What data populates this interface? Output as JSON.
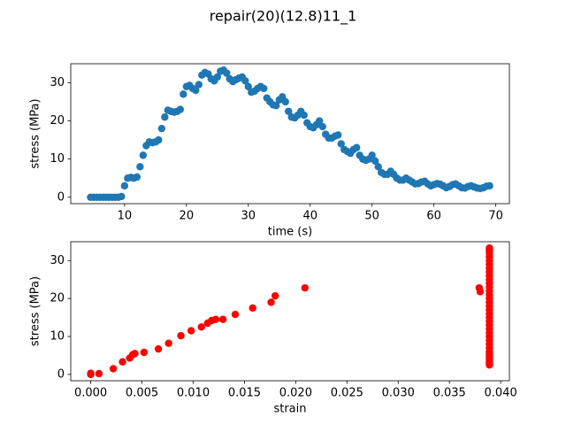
{
  "title": "repair(20)(12.8)11_1",
  "chart_data": [
    {
      "type": "scatter",
      "x_label": "time (s)",
      "y_label": "stress (MPa)",
      "color": "#1f77b4",
      "x": [
        4.5,
        5,
        5.5,
        6,
        6.5,
        7,
        7.5,
        8,
        8.5,
        9,
        9.5,
        10,
        10.5,
        11,
        11.5,
        12,
        12.5,
        13,
        13.5,
        14,
        14.5,
        15,
        15.5,
        16,
        16.5,
        17,
        17.5,
        18,
        18.5,
        19,
        19.5,
        20,
        20.5,
        21,
        21.5,
        22,
        22.5,
        23,
        23.5,
        24,
        24.5,
        25,
        25.5,
        26,
        26.5,
        27,
        27.5,
        28,
        28.5,
        29,
        29.5,
        30,
        30.5,
        31,
        31.5,
        32,
        32.5,
        33,
        33.5,
        34,
        34.5,
        35,
        35.5,
        36,
        36.5,
        37,
        37.5,
        38,
        38.5,
        39,
        39.5,
        40,
        40.5,
        41,
        41.5,
        42,
        42.5,
        43,
        43.5,
        44,
        44.5,
        45,
        45.5,
        46,
        46.5,
        47,
        47.5,
        48,
        48.5,
        49,
        49.5,
        50,
        50.5,
        51,
        51.5,
        52,
        52.5,
        53,
        53.5,
        54,
        54.5,
        55,
        55.5,
        56,
        56.5,
        57,
        57.5,
        58,
        58.5,
        59,
        59.5,
        60,
        60.5,
        61,
        61.5,
        62,
        62.5,
        63,
        63.5,
        64,
        64.5,
        65,
        65.5,
        66,
        66.5,
        67,
        67.5,
        68,
        68.5,
        69
      ],
      "values": [
        0,
        0,
        0,
        0,
        0,
        0,
        0,
        0,
        0,
        0,
        0.2,
        3,
        5,
        5.2,
        5,
        5.3,
        8,
        11,
        13.5,
        14.5,
        14.3,
        14.5,
        15,
        18,
        21,
        22.8,
        22.5,
        22.3,
        22.5,
        23,
        27,
        29,
        29.3,
        28.5,
        28,
        29.5,
        32,
        32.7,
        32.3,
        31,
        30.5,
        31.5,
        33,
        33.3,
        32.5,
        31,
        30.3,
        30.8,
        31.2,
        31.5,
        30.5,
        29,
        27.5,
        27.8,
        28.5,
        29,
        28.5,
        26,
        25,
        24.2,
        24,
        25.5,
        26.3,
        25,
        22.5,
        21,
        20.8,
        21.5,
        22.5,
        21.5,
        19.5,
        18.5,
        18.2,
        19,
        20,
        18.5,
        16.5,
        15.5,
        15.5,
        16,
        16.3,
        14,
        12.5,
        12,
        11.5,
        12.5,
        13,
        11,
        10,
        9.7,
        10,
        11,
        9.5,
        8,
        6.5,
        6,
        6,
        6.8,
        6,
        5,
        4.5,
        4.5,
        5,
        4.5,
        4,
        3.5,
        3.6,
        4,
        4.2,
        3.5,
        3,
        3.3,
        3.6,
        3.4,
        3,
        2.5,
        2.8,
        3.3,
        3.5,
        3,
        2.5,
        2.4,
        2.8,
        3,
        2.7,
        2.4,
        2.3,
        2.5,
        2.9,
        3
      ],
      "xlim": [
        1.3,
        72.2
      ],
      "xticks": [
        10,
        20,
        30,
        40,
        50,
        60,
        70
      ],
      "ylim": [
        -1.67,
        34.97
      ],
      "yticks": [
        0,
        10,
        20,
        30
      ]
    },
    {
      "type": "scatter",
      "x_label": "strain",
      "y_label": "stress (MPa)",
      "color": "red",
      "x": [
        0,
        0,
        0.0008,
        0.0022,
        0.0031,
        0.0038,
        0.0041,
        0.0043,
        0.0052,
        0.0066,
        0.0076,
        0.0088,
        0.0098,
        0.0108,
        0.0114,
        0.0118,
        0.0122,
        0.0129,
        0.0141,
        0.0158,
        0.0176,
        0.018,
        0.0209,
        0.0379,
        0.038,
        0.0389,
        0.0389,
        0.0389,
        0.0389,
        0.0389,
        0.0389,
        0.0389,
        0.0389,
        0.0389,
        0.0389,
        0.0389,
        0.0389,
        0.0389,
        0.0389,
        0.0389,
        0.0389,
        0.0389,
        0.0389,
        0.0389,
        0.0389,
        0.0389,
        0.0389,
        0.0389,
        0.0389,
        0.0389,
        0.0389,
        0.0389,
        0.0389,
        0.0389,
        0.0389,
        0.0389,
        0.0389,
        0.0389,
        0.0389,
        0.0389,
        0.0389,
        0.0389
      ],
      "values": [
        0,
        0.3,
        0.2,
        1.5,
        3.3,
        4.3,
        5.2,
        5.5,
        5.8,
        6.7,
        8.2,
        10.2,
        11.5,
        12.5,
        13.5,
        14.2,
        14.5,
        14.5,
        15.8,
        17.5,
        19,
        20.7,
        22.8,
        22.8,
        21.8,
        2.5,
        3,
        3.5,
        4,
        4.5,
        5,
        5.5,
        6,
        7,
        8,
        9,
        10,
        11,
        12,
        13,
        14,
        15,
        16,
        17,
        18,
        19,
        20,
        21,
        22,
        23,
        24,
        25,
        26,
        27,
        28,
        29,
        30,
        31,
        32,
        32.5,
        33,
        33.3
      ],
      "xlim": [
        -0.00195,
        0.04085
      ],
      "xticks": [
        {
          "value": 0,
          "label": "0.000"
        },
        {
          "value": 0.005,
          "label": "0.005"
        },
        {
          "value": 0.01,
          "label": "0.010"
        },
        {
          "value": 0.015,
          "label": "0.015"
        },
        {
          "value": 0.02,
          "label": "0.020"
        },
        {
          "value": 0.025,
          "label": "0.025"
        },
        {
          "value": 0.03,
          "label": "0.030"
        },
        {
          "value": 0.035,
          "label": "0.035"
        },
        {
          "value": 0.04,
          "label": "0.040"
        }
      ],
      "ylim": [
        -1.67,
        34.97
      ],
      "yticks": [
        0,
        10,
        20,
        30
      ]
    }
  ]
}
